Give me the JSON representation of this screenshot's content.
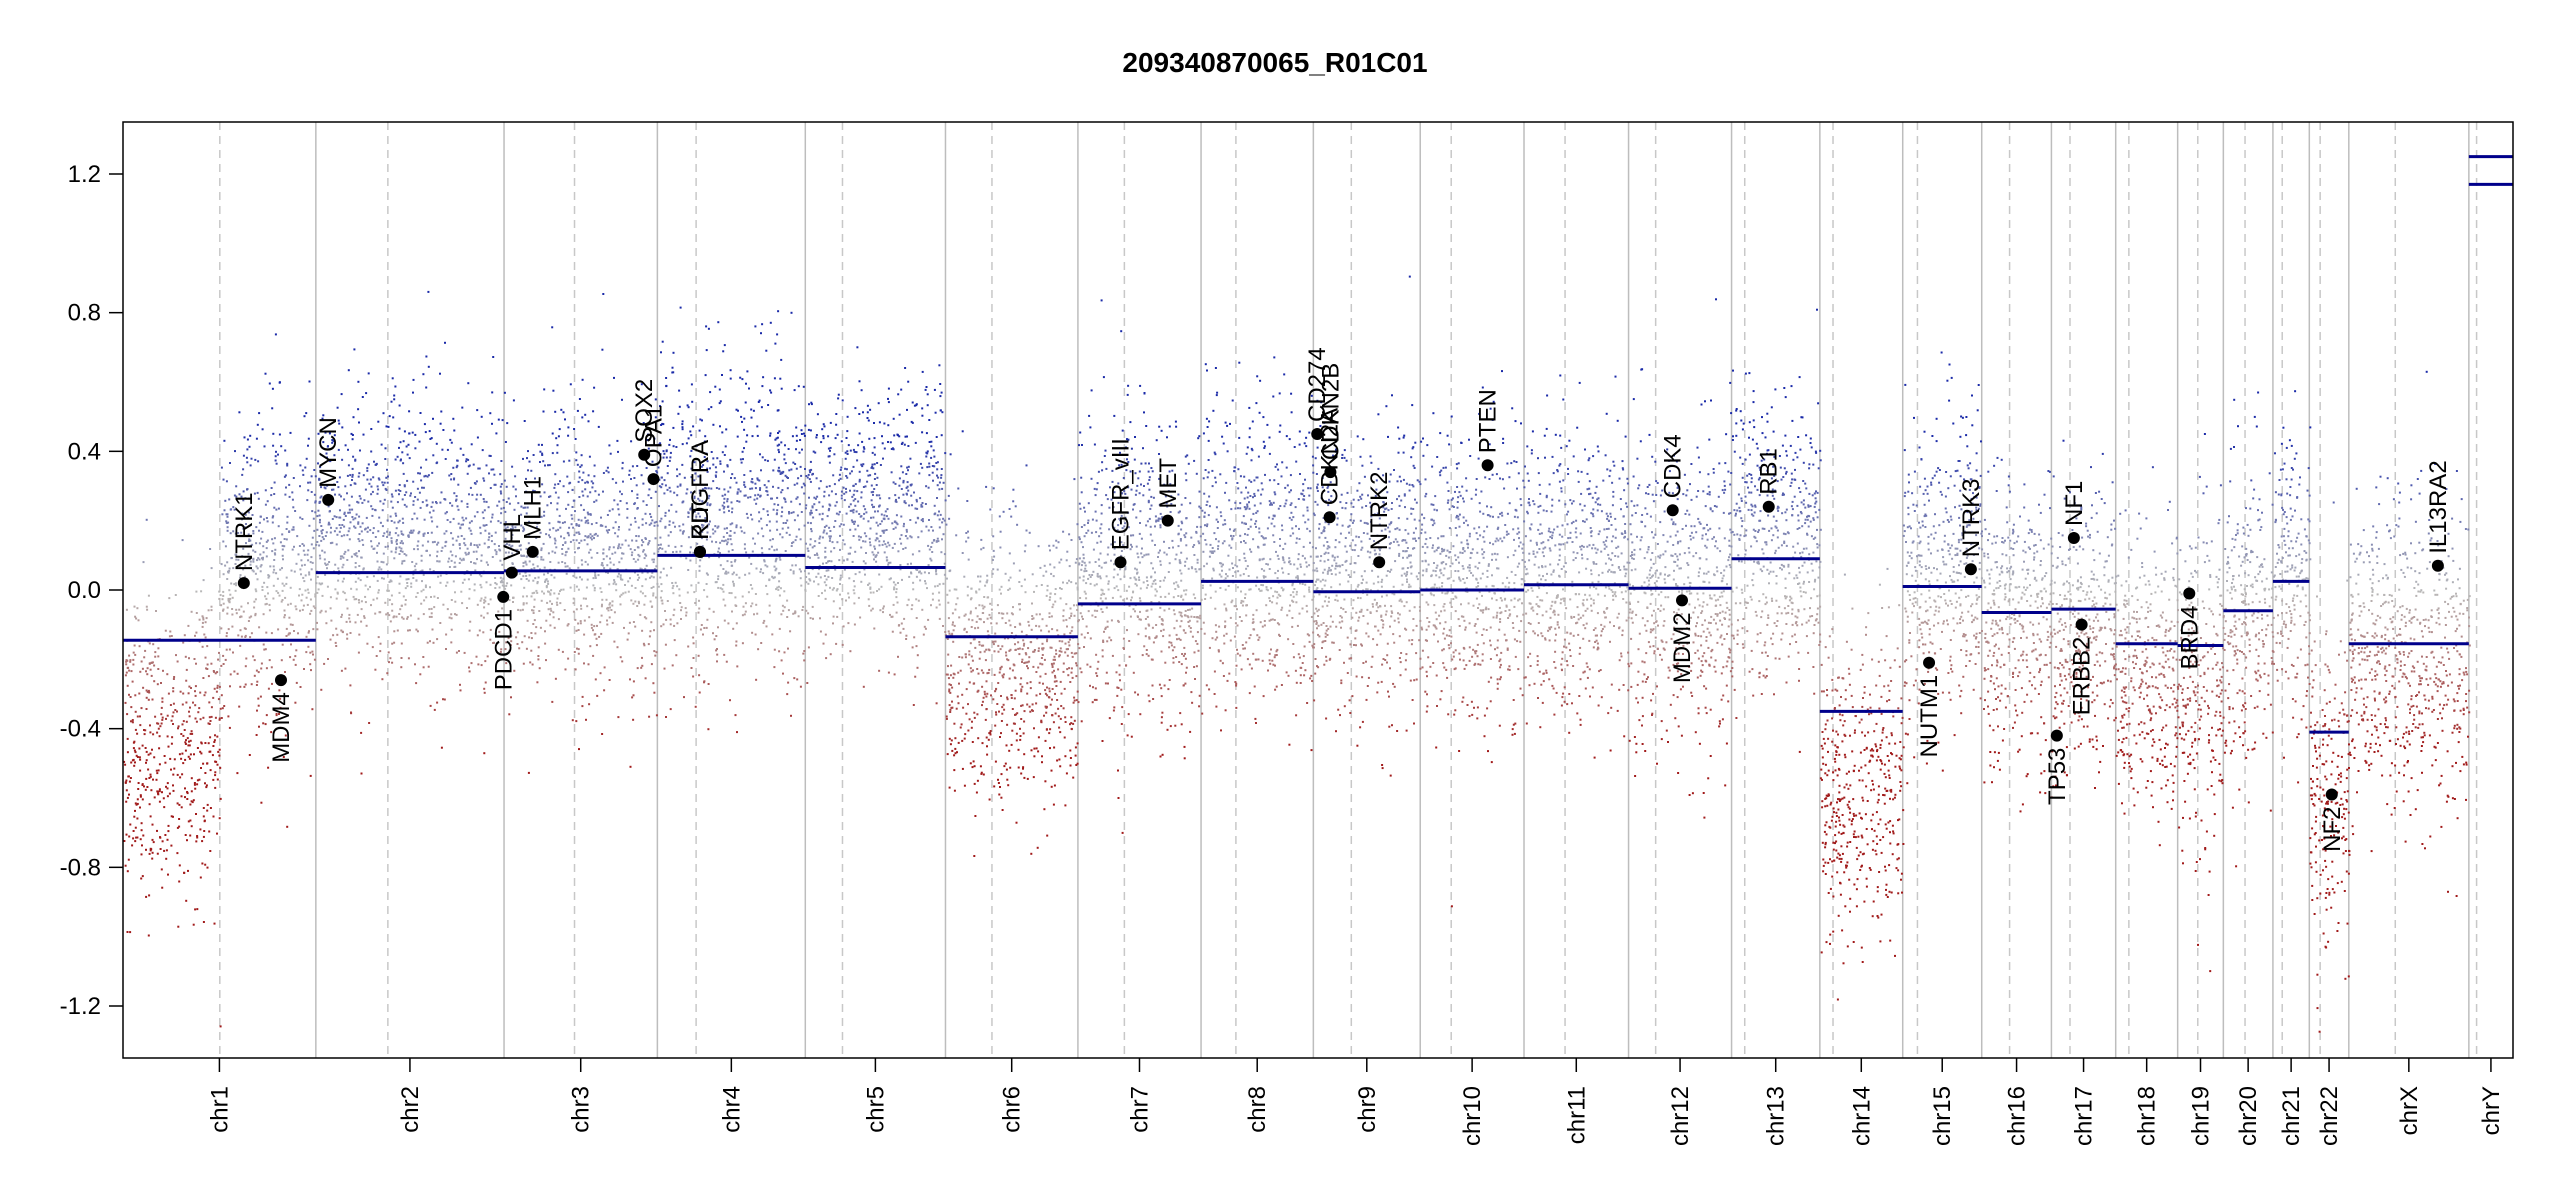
{
  "chart_data": {
    "type": "scatter",
    "title": "209340870065_R01C01",
    "xlabel": "",
    "ylabel": "",
    "ylim": [
      -1.35,
      1.35
    ],
    "y_ticks": [
      1.2,
      0.8,
      0.4,
      0.0,
      -0.4,
      -0.8,
      -1.2
    ],
    "y_tick_labels": [
      "1.2",
      "0.8",
      "0.4",
      "0.0",
      "-0.4",
      "-0.8",
      "-1.2"
    ],
    "grid": "chromosome boundaries (solid) and centromeres (dashed)",
    "colors": {
      "gain": "#1a2aa8",
      "neutral": "#b8b8b8",
      "loss": "#a11a1a",
      "segment": "#00008b",
      "boundary": "#bdbdbd"
    },
    "chromosomes": [
      {
        "name": "chr1",
        "size": 249,
        "cen": 125,
        "segments": [
          {
            "start": 0,
            "end": 249,
            "value": -0.145
          }
        ]
      },
      {
        "name": "chr2",
        "size": 243,
        "cen": 93,
        "segments": [
          {
            "start": 0,
            "end": 243,
            "value": 0.05
          }
        ]
      },
      {
        "name": "chr3",
        "size": 198,
        "cen": 91,
        "segments": [
          {
            "start": 0,
            "end": 198,
            "value": 0.055
          }
        ]
      },
      {
        "name": "chr4",
        "size": 191,
        "cen": 50,
        "segments": [
          {
            "start": 0,
            "end": 191,
            "value": 0.1
          }
        ]
      },
      {
        "name": "chr5",
        "size": 181,
        "cen": 48,
        "segments": [
          {
            "start": 0,
            "end": 181,
            "value": 0.065
          }
        ]
      },
      {
        "name": "chr6",
        "size": 171,
        "cen": 60,
        "segments": [
          {
            "start": 0,
            "end": 171,
            "value": -0.135
          }
        ]
      },
      {
        "name": "chr7",
        "size": 159,
        "cen": 60,
        "segments": [
          {
            "start": 0,
            "end": 159,
            "value": -0.04
          }
        ]
      },
      {
        "name": "chr8",
        "size": 145,
        "cen": 45,
        "segments": [
          {
            "start": 0,
            "end": 145,
            "value": 0.025
          }
        ]
      },
      {
        "name": "chr9",
        "size": 138,
        "cen": 49,
        "segments": [
          {
            "start": 0,
            "end": 138,
            "value": -0.005
          }
        ]
      },
      {
        "name": "chr10",
        "size": 134,
        "cen": 40,
        "segments": [
          {
            "start": 0,
            "end": 134,
            "value": 0.0
          }
        ]
      },
      {
        "name": "chr11",
        "size": 135,
        "cen": 53,
        "segments": [
          {
            "start": 0,
            "end": 135,
            "value": 0.015
          }
        ]
      },
      {
        "name": "chr12",
        "size": 133,
        "cen": 35,
        "segments": [
          {
            "start": 0,
            "end": 133,
            "value": 0.005
          }
        ]
      },
      {
        "name": "chr13",
        "size": 114,
        "cen": 17,
        "segments": [
          {
            "start": 0,
            "end": 114,
            "value": 0.09
          }
        ]
      },
      {
        "name": "chr14",
        "size": 107,
        "cen": 17,
        "segments": [
          {
            "start": 0,
            "end": 107,
            "value": -0.35
          }
        ]
      },
      {
        "name": "chr15",
        "size": 102,
        "cen": 19,
        "segments": [
          {
            "start": 0,
            "end": 102,
            "value": 0.01
          }
        ]
      },
      {
        "name": "chr16",
        "size": 90,
        "cen": 36,
        "segments": [
          {
            "start": 0,
            "end": 90,
            "value": -0.065
          }
        ]
      },
      {
        "name": "chr17",
        "size": 83,
        "cen": 24,
        "segments": [
          {
            "start": 0,
            "end": 83,
            "value": -0.055
          }
        ]
      },
      {
        "name": "chr18",
        "size": 80,
        "cen": 17,
        "segments": [
          {
            "start": 0,
            "end": 80,
            "value": -0.155
          }
        ]
      },
      {
        "name": "chr19",
        "size": 59,
        "cen": 26,
        "segments": [
          {
            "start": 0,
            "end": 59,
            "value": -0.16
          }
        ]
      },
      {
        "name": "chr20",
        "size": 64,
        "cen": 28,
        "segments": [
          {
            "start": 0,
            "end": 64,
            "value": -0.06
          }
        ]
      },
      {
        "name": "chr21",
        "size": 47,
        "cen": 12,
        "segments": [
          {
            "start": 0,
            "end": 47,
            "value": 0.025
          }
        ]
      },
      {
        "name": "chr22",
        "size": 51,
        "cen": 14,
        "segments": [
          {
            "start": 0,
            "end": 51,
            "value": -0.41
          }
        ]
      },
      {
        "name": "chrX",
        "size": 155,
        "cen": 60,
        "segments": [
          {
            "start": 0,
            "end": 155,
            "value": -0.155
          }
        ]
      },
      {
        "name": "chrY",
        "size": 57,
        "cen": 10,
        "segments": [
          {
            "start": 0,
            "end": 57,
            "value": 1.17
          },
          {
            "start": 0,
            "end": 57,
            "value": 1.25
          }
        ]
      }
    ],
    "scatter_profile": [
      {
        "chr": "chr1",
        "spread": 0.22,
        "arms": [
          {
            "from": 0,
            "to": 125,
            "mean": -0.45
          },
          {
            "from": 125,
            "to": 249,
            "mean": 0.05
          }
        ]
      },
      {
        "chr": "chr2",
        "spread": 0.2,
        "arms": [
          {
            "from": 0,
            "to": 243,
            "mean": 0.15
          }
        ]
      },
      {
        "chr": "chr3",
        "spread": 0.2,
        "arms": [
          {
            "from": 0,
            "to": 198,
            "mean": 0.1
          }
        ]
      },
      {
        "chr": "chr4",
        "spread": 0.22,
        "arms": [
          {
            "from": 0,
            "to": 191,
            "mean": 0.2
          }
        ]
      },
      {
        "chr": "chr5",
        "spread": 0.18,
        "arms": [
          {
            "from": 0,
            "to": 181,
            "mean": 0.2
          }
        ]
      },
      {
        "chr": "chr6",
        "spread": 0.2,
        "arms": [
          {
            "from": 0,
            "to": 171,
            "mean": -0.2
          }
        ]
      },
      {
        "chr": "chr7",
        "spread": 0.22,
        "arms": [
          {
            "from": 0,
            "to": 159,
            "mean": 0.05
          }
        ]
      },
      {
        "chr": "chr8",
        "spread": 0.2,
        "arms": [
          {
            "from": 0,
            "to": 145,
            "mean": 0.1
          }
        ]
      },
      {
        "chr": "chr9",
        "spread": 0.2,
        "arms": [
          {
            "from": 0,
            "to": 138,
            "mean": 0.05
          }
        ]
      },
      {
        "chr": "chr10",
        "spread": 0.2,
        "arms": [
          {
            "from": 0,
            "to": 134,
            "mean": 0.05
          }
        ]
      },
      {
        "chr": "chr11",
        "spread": 0.2,
        "arms": [
          {
            "from": 0,
            "to": 135,
            "mean": 0.05
          }
        ]
      },
      {
        "chr": "chr12",
        "spread": 0.22,
        "arms": [
          {
            "from": 0,
            "to": 133,
            "mean": 0.0
          }
        ]
      },
      {
        "chr": "chr13",
        "spread": 0.2,
        "arms": [
          {
            "from": 0,
            "to": 114,
            "mean": 0.15
          }
        ]
      },
      {
        "chr": "chr14",
        "spread": 0.22,
        "arms": [
          {
            "from": 0,
            "to": 107,
            "mean": -0.55
          }
        ]
      },
      {
        "chr": "chr15",
        "spread": 0.2,
        "arms": [
          {
            "from": 0,
            "to": 102,
            "mean": 0.05
          }
        ]
      },
      {
        "chr": "chr16",
        "spread": 0.2,
        "arms": [
          {
            "from": 0,
            "to": 90,
            "mean": -0.1
          }
        ]
      },
      {
        "chr": "chr17",
        "spread": 0.2,
        "arms": [
          {
            "from": 0,
            "to": 83,
            "mean": -0.1
          }
        ]
      },
      {
        "chr": "chr18",
        "spread": 0.2,
        "arms": [
          {
            "from": 0,
            "to": 80,
            "mean": -0.25
          }
        ]
      },
      {
        "chr": "chr19",
        "spread": 0.24,
        "arms": [
          {
            "from": 0,
            "to": 59,
            "mean": -0.3
          }
        ]
      },
      {
        "chr": "chr20",
        "spread": 0.22,
        "arms": [
          {
            "from": 0,
            "to": 64,
            "mean": -0.05
          }
        ]
      },
      {
        "chr": "chr21",
        "spread": 0.2,
        "arms": [
          {
            "from": 0,
            "to": 47,
            "mean": 0.05
          }
        ]
      },
      {
        "chr": "chr22",
        "spread": 0.24,
        "arms": [
          {
            "from": 0,
            "to": 51,
            "mean": -0.6
          }
        ]
      },
      {
        "chr": "chrX",
        "spread": 0.22,
        "arms": [
          {
            "from": 0,
            "to": 155,
            "mean": -0.2
          }
        ]
      },
      {
        "chr": "chrY",
        "spread": 0.0,
        "arms": []
      }
    ],
    "genes": [
      {
        "name": "NTRK1",
        "chr": "chr1",
        "pos": 156,
        "value": 0.02,
        "label_side": "above"
      },
      {
        "name": "MDM4",
        "chr": "chr1",
        "pos": 204,
        "value": -0.26,
        "label_side": "below"
      },
      {
        "name": "MYCN",
        "chr": "chr2",
        "pos": 16,
        "value": 0.26,
        "label_side": "above"
      },
      {
        "name": "PDCD1",
        "chr": "chr2",
        "pos": 242,
        "value": -0.02,
        "label_side": "below"
      },
      {
        "name": "VHL",
        "chr": "chr3",
        "pos": 10,
        "value": 0.05,
        "label_side": "above"
      },
      {
        "name": "MLH1",
        "chr": "chr3",
        "pos": 37,
        "value": 0.11,
        "label_side": "above"
      },
      {
        "name": "SOX2",
        "chr": "chr3",
        "pos": 181,
        "value": 0.39,
        "label_side": "above"
      },
      {
        "name": "OPA1",
        "chr": "chr3",
        "pos": 193,
        "value": 0.32,
        "label_side": "above"
      },
      {
        "name": "PDGFRA",
        "chr": "chr4",
        "pos": 55,
        "value": 0.11,
        "label_side": "above"
      },
      {
        "name": "KIT",
        "chr": "chr4",
        "pos": 55,
        "value": 0.11,
        "label_side": "above"
      },
      {
        "name": "EGFR_vIII",
        "chr": "chr7",
        "pos": 55,
        "value": 0.08,
        "label_side": "above"
      },
      {
        "name": "MET",
        "chr": "chr7",
        "pos": 116,
        "value": 0.2,
        "label_side": "above"
      },
      {
        "name": "CD274",
        "chr": "chr9",
        "pos": 5,
        "value": 0.45,
        "label_side": "above"
      },
      {
        "name": "CDKN2A",
        "chr": "chr9",
        "pos": 21,
        "value": 0.21,
        "label_side": "above"
      },
      {
        "name": "CDKN2B",
        "chr": "chr9",
        "pos": 22,
        "value": 0.34,
        "label_side": "above"
      },
      {
        "name": "NTRK2",
        "chr": "chr9",
        "pos": 85,
        "value": 0.08,
        "label_side": "above"
      },
      {
        "name": "PTEN",
        "chr": "chr10",
        "pos": 87,
        "value": 0.36,
        "label_side": "above"
      },
      {
        "name": "CDK4",
        "chr": "chr12",
        "pos": 57,
        "value": 0.23,
        "label_side": "above"
      },
      {
        "name": "MDM2",
        "chr": "chr12",
        "pos": 69,
        "value": -0.03,
        "label_side": "below"
      },
      {
        "name": "RB1",
        "chr": "chr13",
        "pos": 48,
        "value": 0.24,
        "label_side": "above"
      },
      {
        "name": "NUTM1",
        "chr": "chr15",
        "pos": 34,
        "value": -0.21,
        "label_side": "below"
      },
      {
        "name": "NTRK3",
        "chr": "chr15",
        "pos": 88,
        "value": 0.06,
        "label_side": "above"
      },
      {
        "name": "TP53",
        "chr": "chr17",
        "pos": 7,
        "value": -0.42,
        "label_side": "below"
      },
      {
        "name": "NF1",
        "chr": "chr17",
        "pos": 29,
        "value": 0.15,
        "label_side": "above"
      },
      {
        "name": "ERBB2",
        "chr": "chr17",
        "pos": 39,
        "value": -0.1,
        "label_side": "below"
      },
      {
        "name": "BRD4",
        "chr": "chr19",
        "pos": 15,
        "value": -0.01,
        "label_side": "below"
      },
      {
        "name": "NF2",
        "chr": "chr22",
        "pos": 29,
        "value": -0.59,
        "label_side": "below"
      },
      {
        "name": "IL13RA2",
        "chr": "chrX",
        "pos": 115,
        "value": 0.07,
        "label_side": "above"
      }
    ]
  }
}
